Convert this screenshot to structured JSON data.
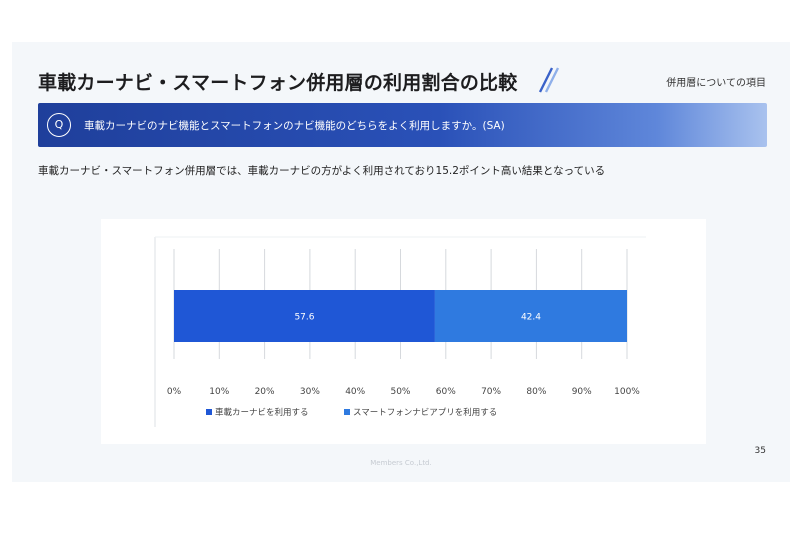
{
  "header": {
    "title": "車載カーナビ・スマートフォン併用層の利用割合の比較",
    "category": "併用層についての項目"
  },
  "question": {
    "badge": "Q",
    "text": "車載カーナビのナビ機能とスマートフォンのナビ機能のどちらをよく利用しますか。(SA)"
  },
  "summary": "車載カーナビ・スマートフォン併用層では、車載カーナビの方がよく利用されており15.2ポイント高い結果となっている",
  "page_number": "35",
  "footer": "Members Co.,Ltd.",
  "colors": {
    "series1": "#1f57d6",
    "series2": "#2f7ae0",
    "question_bar": "#2a4fb5"
  },
  "chart_data": {
    "type": "bar",
    "orientation": "horizontal",
    "stacked": true,
    "categories": [
      ""
    ],
    "series": [
      {
        "name": "車載カーナビを利用する",
        "values": [
          57.6
        ],
        "label": "57.6"
      },
      {
        "name": "スマートフォンナビアプリを利用する",
        "values": [
          42.4
        ],
        "label": "42.4"
      }
    ],
    "xlim": [
      0,
      100
    ],
    "ticks": [
      "0%",
      "10%",
      "20%",
      "30%",
      "40%",
      "50%",
      "60%",
      "70%",
      "80%",
      "90%",
      "100%"
    ],
    "grid": true,
    "legend": "bottom"
  }
}
